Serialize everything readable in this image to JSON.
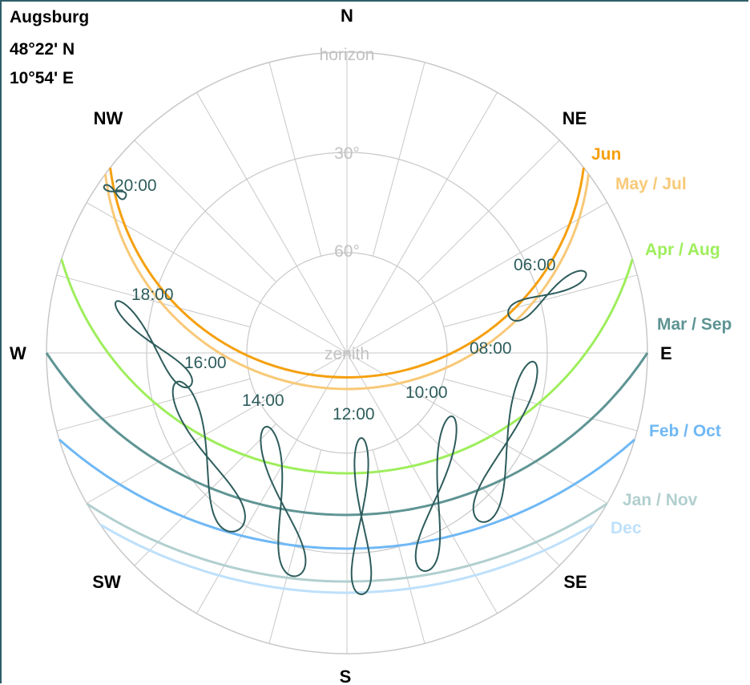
{
  "location": {
    "name": "Augsburg",
    "latitude": "48°22' N",
    "longitude": "10°54' E"
  },
  "compass": {
    "N": "N",
    "NE": "NE",
    "E": "E",
    "SE": "SE",
    "S": "S",
    "SW": "SW",
    "W": "W",
    "NW": "NW"
  },
  "rings": {
    "horizon": "horizon",
    "alt30": "30°",
    "alt60": "60°",
    "zenith": "zenith"
  },
  "months": [
    {
      "label": "Jun",
      "color": "#f5a00f"
    },
    {
      "label": "May / Jul",
      "color": "#f8c978"
    },
    {
      "label": "Apr / Aug",
      "color": "#9eee5c"
    },
    {
      "label": "Mar / Sep",
      "color": "#5f9494"
    },
    {
      "label": "Feb / Oct",
      "color": "#6fb8f5"
    },
    {
      "label": "Jan / Nov",
      "color": "#b2cfcf"
    },
    {
      "label": "Dec",
      "color": "#bee0fb"
    }
  ],
  "hours": [
    "06:00",
    "08:00",
    "10:00",
    "12:00",
    "14:00",
    "16:00",
    "18:00",
    "20:00"
  ],
  "colors": {
    "grid": "#c8c8c8",
    "ring_label": "#c2c2c2",
    "analemma": "#2e5c5c",
    "hour_label": "#2e5c5c",
    "frame": "#2f5f6a"
  }
}
